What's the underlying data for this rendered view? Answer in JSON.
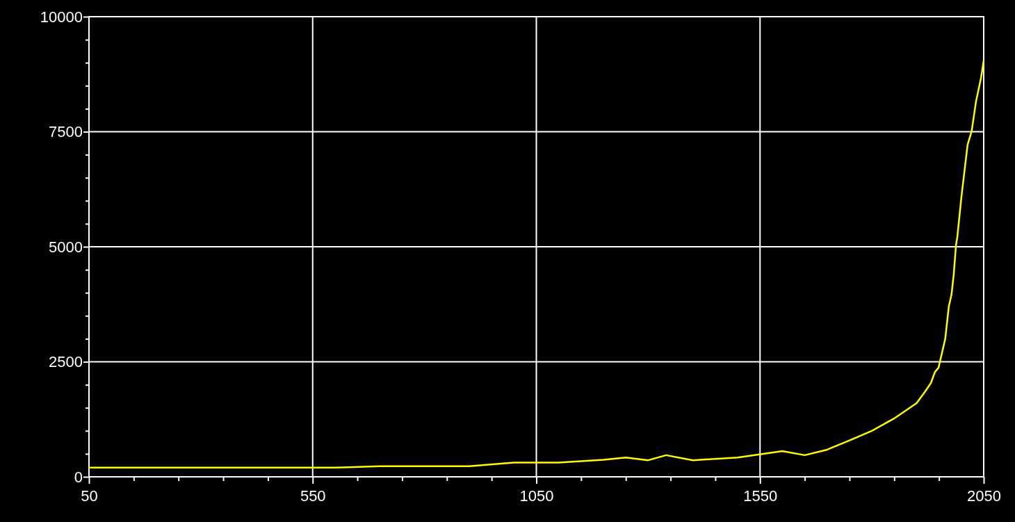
{
  "chart_data": {
    "type": "line",
    "x": [
      50,
      600,
      700,
      900,
      1000,
      1100,
      1200,
      1250,
      1300,
      1340,
      1400,
      1500,
      1600,
      1650,
      1700,
      1750,
      1800,
      1850,
      1900,
      1918,
      1932,
      1941,
      1949,
      1964,
      1972,
      1978,
      1983,
      1988,
      1991,
      2000,
      2014,
      2023,
      2033,
      2044,
      2050
    ],
    "series": [
      {
        "color": "#ffff00",
        "values": [
          200,
          200,
          230,
          230,
          310,
          310,
          370,
          420,
          360,
          470,
          360,
          420,
          560,
          470,
          590,
          790,
          1000,
          1270,
          1600,
          1840,
          2040,
          2280,
          2370,
          3000,
          3700,
          3960,
          4400,
          5030,
          5210,
          6070,
          7220,
          7510,
          8170,
          8670,
          9050
        ]
      }
    ],
    "xlim": [
      50,
      2050
    ],
    "xticks": [
      50,
      {
        "value": 150,
        "label": null
      },
      {
        "value": 250,
        "label": null
      },
      {
        "value": 350,
        "label": null
      },
      {
        "value": 450,
        "label": null
      },
      550,
      {
        "value": 650,
        "label": null
      },
      {
        "value": 750,
        "label": null
      },
      {
        "value": 850,
        "label": null
      },
      {
        "value": 950,
        "label": null
      },
      1050,
      {
        "value": 1150,
        "label": null
      },
      {
        "value": 1250,
        "label": null
      },
      {
        "value": 1350,
        "label": null
      },
      {
        "value": 1450,
        "label": null
      },
      1550,
      {
        "value": 1650,
        "label": null
      },
      {
        "value": 1750,
        "label": null
      },
      {
        "value": 1850,
        "label": null
      },
      {
        "value": 1950,
        "label": null
      },
      2050
    ],
    "ylim": [
      0,
      10000
    ],
    "yticks": [
      0,
      {
        "value": 500,
        "label": null
      },
      {
        "value": 1000,
        "label": null
      },
      {
        "value": 1500,
        "label": null
      },
      {
        "value": 2000,
        "label": null
      },
      2500,
      {
        "value": 3000,
        "label": null
      },
      {
        "value": 3500,
        "label": null
      },
      {
        "value": 4000,
        "label": null
      },
      {
        "value": 4500,
        "label": null
      },
      5000,
      {
        "value": 5500,
        "label": null
      },
      {
        "value": 6000,
        "label": null
      },
      {
        "value": 6500,
        "label": null
      },
      {
        "value": 7000,
        "label": null
      },
      7500,
      {
        "value": 8000,
        "label": null
      },
      {
        "value": 8500,
        "label": null
      },
      {
        "value": 9000,
        "label": null
      },
      {
        "value": 9500,
        "label": null
      },
      10000
    ],
    "grid": true,
    "line_style": "solid",
    "marker": "none"
  }
}
